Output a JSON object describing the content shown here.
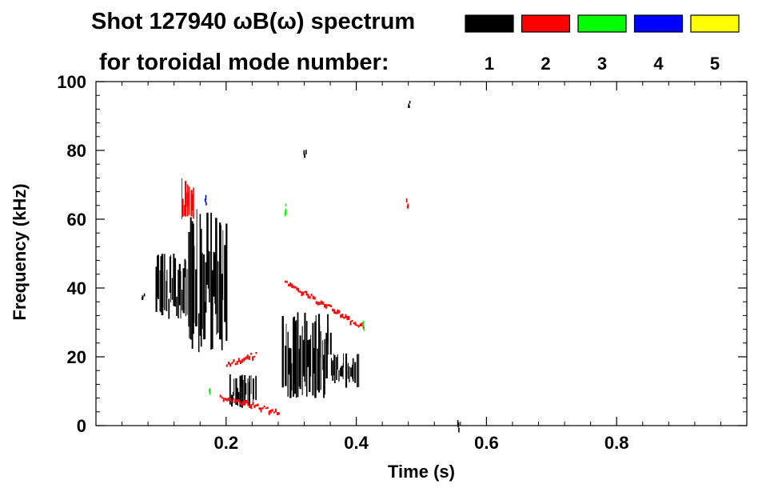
{
  "chart_data": {
    "type": "scatter",
    "title_line1": "Shot 127940 ωB(ω) spectrum",
    "title_line2": "for toroidal mode number:",
    "xlabel": "Time (s)",
    "ylabel": "Frequency (kHz)",
    "xlim": [
      0.0,
      1.0
    ],
    "ylim": [
      0,
      100
    ],
    "x_ticks": [
      0.2,
      0.4,
      0.6,
      0.8
    ],
    "x_tick_labels": [
      "0.2",
      "0.4",
      "0.6",
      "0.8"
    ],
    "y_ticks": [
      0,
      20,
      40,
      60,
      80,
      100
    ],
    "y_tick_labels": [
      "0",
      "20",
      "40",
      "60",
      "80",
      "100"
    ],
    "legend": [
      {
        "label": "1",
        "color": "#000000"
      },
      {
        "label": "2",
        "color": "#ff0000"
      },
      {
        "label": "3",
        "color": "#00ff00"
      },
      {
        "label": "4",
        "color": "#0000ff"
      },
      {
        "label": "5",
        "color": "#ffff00"
      }
    ],
    "series": [
      {
        "name": "n=1",
        "color": "#000000",
        "features": [
          {
            "kind": "band",
            "x": [
              0.09,
              0.14
            ],
            "y": [
              31,
              50
            ]
          },
          {
            "kind": "band",
            "x": [
              0.14,
              0.2
            ],
            "y": [
              20,
              63
            ]
          },
          {
            "kind": "band",
            "x": [
              0.205,
              0.245
            ],
            "y": [
              5,
              15
            ]
          },
          {
            "kind": "band",
            "x": [
              0.285,
              0.36
            ],
            "y": [
              8,
              33
            ]
          },
          {
            "kind": "band",
            "x": [
              0.36,
              0.405
            ],
            "y": [
              11,
              21
            ]
          },
          {
            "kind": "spot",
            "x": 0.072,
            "y": 38.5
          },
          {
            "kind": "spot",
            "x": 0.32,
            "y": 80
          },
          {
            "kind": "spot",
            "x": 0.48,
            "y": 93
          },
          {
            "kind": "spot",
            "x": 0.556,
            "y": 1
          }
        ]
      },
      {
        "name": "n=2",
        "color": "#ff0000",
        "features": [
          {
            "kind": "band",
            "x": [
              0.13,
              0.15
            ],
            "y": [
              60,
              72
            ]
          },
          {
            "kind": "line",
            "x": [
              0.29,
              0.41
            ],
            "y": [
              42,
              29
            ]
          },
          {
            "kind": "line",
            "x": [
              0.2,
              0.245
            ],
            "y": [
              18,
              21
            ]
          },
          {
            "kind": "line",
            "x": [
              0.19,
              0.28
            ],
            "y": [
              9,
              4
            ]
          },
          {
            "kind": "spot",
            "x": 0.478,
            "y": 65
          }
        ]
      },
      {
        "name": "n=3",
        "color": "#00ff00",
        "features": [
          {
            "kind": "spot",
            "x": 0.29,
            "y": 63
          },
          {
            "kind": "spot",
            "x": 0.41,
            "y": 29
          },
          {
            "kind": "spot",
            "x": 0.175,
            "y": 10
          }
        ]
      },
      {
        "name": "n=4",
        "color": "#0000ff",
        "features": [
          {
            "kind": "spot",
            "x": 0.168,
            "y": 66
          }
        ]
      },
      {
        "name": "n=5",
        "color": "#ffff00",
        "features": []
      }
    ]
  }
}
